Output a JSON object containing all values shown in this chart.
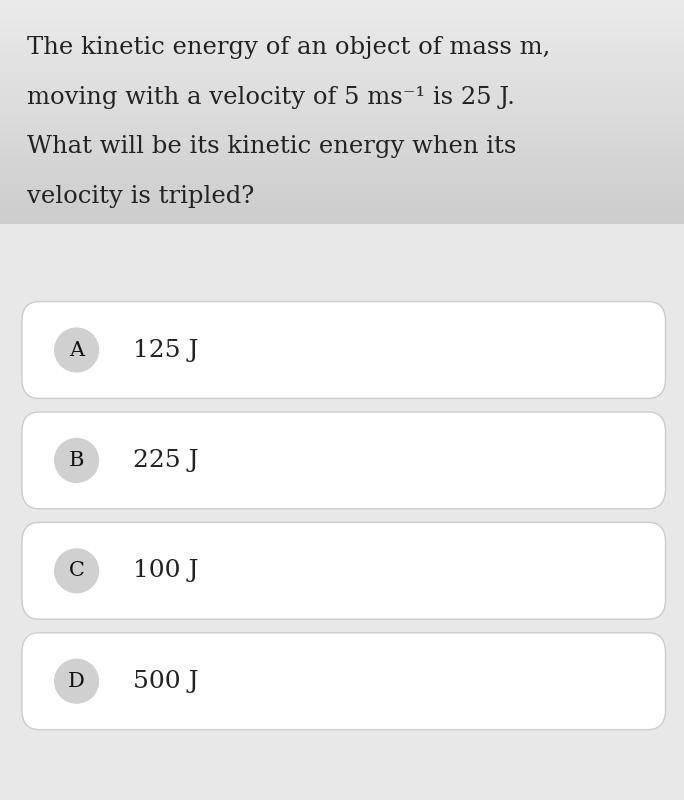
{
  "question_lines": [
    "The kinetic energy of an object of mass m,",
    "moving with a velocity of 5 ms⁻¹ is 25 J.",
    "What will be its kinetic energy when its",
    "velocity is tripled?"
  ],
  "options": [
    {
      "label": "A",
      "text": "125 J"
    },
    {
      "label": "B",
      "text": "225 J"
    },
    {
      "label": "C",
      "text": "100 J"
    },
    {
      "label": "D",
      "text": "500 J"
    }
  ],
  "bg_color": "#e8e8e8",
  "card_bg": "#ffffff",
  "card_border": "#cccccc",
  "label_bg": "#d0d0d0",
  "text_color": "#222222",
  "label_text_color": "#111111",
  "question_fontsize": 17.5,
  "option_fontsize": 18,
  "label_fontsize": 15
}
